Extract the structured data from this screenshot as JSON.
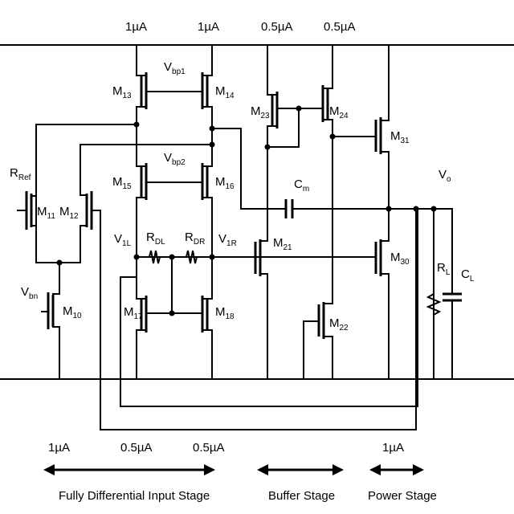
{
  "currents": {
    "top_m13": "1µA",
    "top_m14": "1µA",
    "top_m23": "0.5µA",
    "top_m24": "0.5µA",
    "bottom_input_left": "1µA",
    "bottom_input_mid": "0.5µA",
    "bottom_input_right": "0.5µA",
    "bottom_power": "1µA"
  },
  "transistors": {
    "m10": {
      "main": "M",
      "sub": "10"
    },
    "m11": {
      "main": "M",
      "sub": "11"
    },
    "m12": {
      "main": "M",
      "sub": "12"
    },
    "m13": {
      "main": "M",
      "sub": "13"
    },
    "m14": {
      "main": "M",
      "sub": "14"
    },
    "m15": {
      "main": "M",
      "sub": "15"
    },
    "m16": {
      "main": "M",
      "sub": "16"
    },
    "m17": {
      "main": "M",
      "sub": "17"
    },
    "m18": {
      "main": "M",
      "sub": "18"
    },
    "m21": {
      "main": "M",
      "sub": "21"
    },
    "m22": {
      "main": "M",
      "sub": "22"
    },
    "m23": {
      "main": "M",
      "sub": "23"
    },
    "m24": {
      "main": "M",
      "sub": "24"
    },
    "m30": {
      "main": "M",
      "sub": "30"
    },
    "m31": {
      "main": "M",
      "sub": "31"
    }
  },
  "nodes": {
    "vbp1": {
      "main": "V",
      "sub": "bp1"
    },
    "vbp2": {
      "main": "V",
      "sub": "bp2"
    },
    "vbn": {
      "main": "V",
      "sub": "bn"
    },
    "v1l": {
      "main": "V",
      "sub": "1L"
    },
    "v1r": {
      "main": "V",
      "sub": "1R"
    },
    "vo": {
      "main": "V",
      "sub": "o"
    }
  },
  "components": {
    "rref": {
      "main": "R",
      "sub": "Ref"
    },
    "rdl": {
      "main": "R",
      "sub": "DL"
    },
    "rdr": {
      "main": "R",
      "sub": "DR"
    },
    "cm": {
      "main": "C",
      "sub": "m"
    },
    "rl": {
      "main": "R",
      "sub": "L"
    },
    "cl": {
      "main": "C",
      "sub": "L"
    }
  },
  "stages": {
    "input": "Fully Differential Input Stage",
    "buffer": "Buffer Stage",
    "power": "Power Stage"
  }
}
